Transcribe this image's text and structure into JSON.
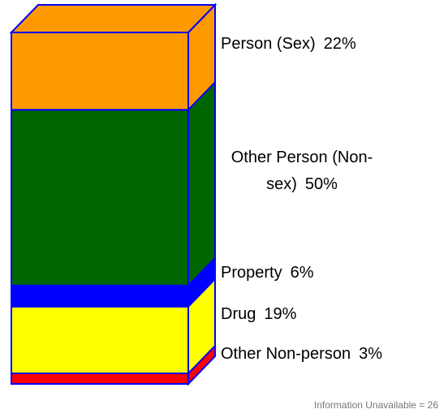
{
  "chart_data": {
    "type": "bar",
    "stacked": true,
    "series": [
      {
        "name": "Other Non-person",
        "color": "#ff0000",
        "values": [
          3
        ],
        "value_labels": [
          "3%"
        ]
      },
      {
        "name": "Drug",
        "color": "#ffff00",
        "values": [
          19
        ],
        "value_labels": [
          "19%"
        ]
      },
      {
        "name": "Property",
        "color": "#0000ff",
        "values": [
          6
        ],
        "value_labels": [
          "6%"
        ]
      },
      {
        "name": "Other Person (Non-sex)",
        "color": "#006600",
        "values": [
          50
        ],
        "value_labels": [
          "50%"
        ]
      },
      {
        "name": "Person (Sex)",
        "color": "#ff9900",
        "values": [
          22
        ],
        "value_labels": [
          "22%"
        ]
      }
    ],
    "ylim": [
      0,
      100
    ],
    "note": "Information Unavailable = 26"
  }
}
